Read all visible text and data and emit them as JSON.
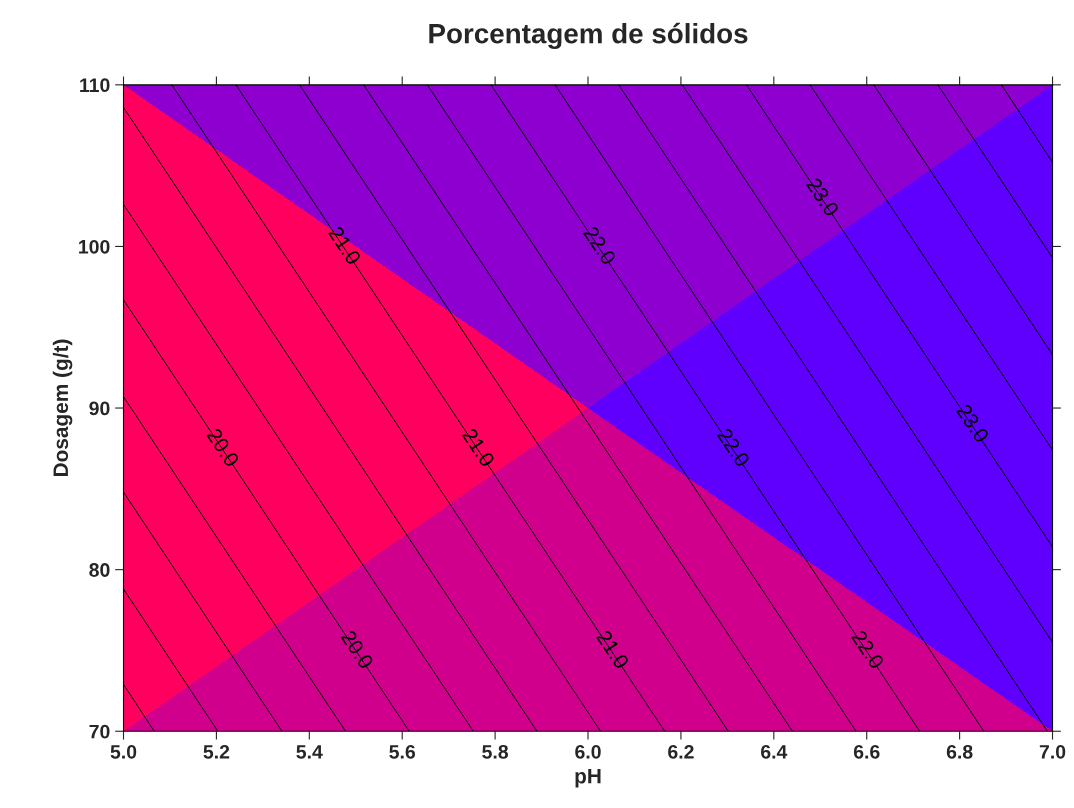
{
  "chart_data": {
    "type": "line",
    "title": "Porcentagem de sólidos",
    "xlabel": "pH",
    "ylabel": "Dosagem (g/t)",
    "series": [
      {
        "color": "#000000",
        "x": [
          5.066,
          5.0
        ],
        "values": [
          70,
          72.9
        ]
      },
      {
        "color": "#000000",
        "x": [
          5.203,
          5.0
        ],
        "values": [
          70,
          78.8
        ]
      },
      {
        "color": "#000000",
        "x": [
          5.341,
          5.0
        ],
        "values": [
          70,
          84.8
        ]
      },
      {
        "color": "#000000",
        "x": [
          5.478,
          5.0
        ],
        "values": [
          70,
          90.7
        ]
      },
      {
        "color": "#000000",
        "x": [
          5.615,
          5.0
        ],
        "values": [
          70,
          96.7
        ]
      },
      {
        "color": "#000000",
        "x": [
          5.753,
          5.0
        ],
        "values": [
          70,
          102.6
        ]
      },
      {
        "color": "#000000",
        "x": [
          5.89,
          5.0
        ],
        "values": [
          70,
          108.6
        ]
      },
      {
        "color": "#000000",
        "x": [
          6.027,
          5.104
        ],
        "values": [
          70,
          110
        ]
      },
      {
        "color": "#000000",
        "x": [
          6.165,
          5.242
        ],
        "values": [
          70,
          110
        ]
      },
      {
        "color": "#000000",
        "x": [
          6.302,
          5.379
        ],
        "values": [
          70,
          110
        ]
      },
      {
        "color": "#000000",
        "x": [
          6.44,
          5.517
        ],
        "values": [
          70,
          110
        ]
      },
      {
        "color": "#000000",
        "x": [
          6.577,
          5.654
        ],
        "values": [
          70,
          110
        ]
      },
      {
        "color": "#000000",
        "x": [
          6.714,
          5.791
        ],
        "values": [
          70,
          110
        ]
      },
      {
        "color": "#000000",
        "x": [
          6.852,
          5.929
        ],
        "values": [
          70,
          110
        ]
      },
      {
        "color": "#000000",
        "x": [
          6.989,
          6.066
        ],
        "values": [
          70,
          110
        ]
      },
      {
        "color": "#000000",
        "x": [
          7.0,
          6.203
        ],
        "values": [
          75.5,
          110
        ]
      },
      {
        "color": "#000000",
        "x": [
          7.0,
          6.341
        ],
        "values": [
          81.4,
          110
        ]
      },
      {
        "color": "#000000",
        "x": [
          7.0,
          6.478
        ],
        "values": [
          87.4,
          110
        ]
      },
      {
        "color": "#000000",
        "x": [
          7.0,
          6.615
        ],
        "values": [
          93.3,
          110
        ]
      },
      {
        "color": "#000000",
        "x": [
          7.0,
          6.753
        ],
        "values": [
          99.3,
          110
        ]
      },
      {
        "color": "#000000",
        "x": [
          7.0,
          6.89
        ],
        "values": [
          105.2,
          110
        ]
      }
    ],
    "xlim": [
      5.0,
      7.0
    ],
    "xticks": [
      {
        "value": 5.0,
        "label": "5.0"
      },
      {
        "value": 5.2,
        "label": "5.2"
      },
      {
        "value": 5.4,
        "label": "5.4"
      },
      {
        "value": 5.6,
        "label": "5.6"
      },
      {
        "value": 5.8,
        "label": "5.8"
      },
      {
        "value": 6.0,
        "label": "6.0"
      },
      {
        "value": 6.2,
        "label": "6.2"
      },
      {
        "value": 6.4,
        "label": "6.4"
      },
      {
        "value": 6.6,
        "label": "6.6"
      },
      {
        "value": 6.8,
        "label": "6.8"
      },
      {
        "value": 7.0,
        "label": "7.0"
      }
    ],
    "ylim": [
      70,
      110
    ],
    "yticks": [
      70,
      80,
      90,
      100,
      110
    ],
    "annotations": [
      {
        "text": "20.0",
        "x": 5.211,
        "y": 87.5
      },
      {
        "text": "20.0",
        "x": 5.5,
        "y": 75
      },
      {
        "text": "21.0",
        "x": 5.473,
        "y": 100
      },
      {
        "text": "21.0",
        "x": 5.761,
        "y": 87.5
      },
      {
        "text": "21.0",
        "x": 6.05,
        "y": 75
      },
      {
        "text": "22.0",
        "x": 6.022,
        "y": 100
      },
      {
        "text": "22.0",
        "x": 6.31,
        "y": 87.5
      },
      {
        "text": "22.0",
        "x": 6.599,
        "y": 75
      },
      {
        "text": "23.0",
        "x": 6.502,
        "y": 103
      },
      {
        "text": "23.0",
        "x": 6.825,
        "y": 89
      }
    ]
  }
}
